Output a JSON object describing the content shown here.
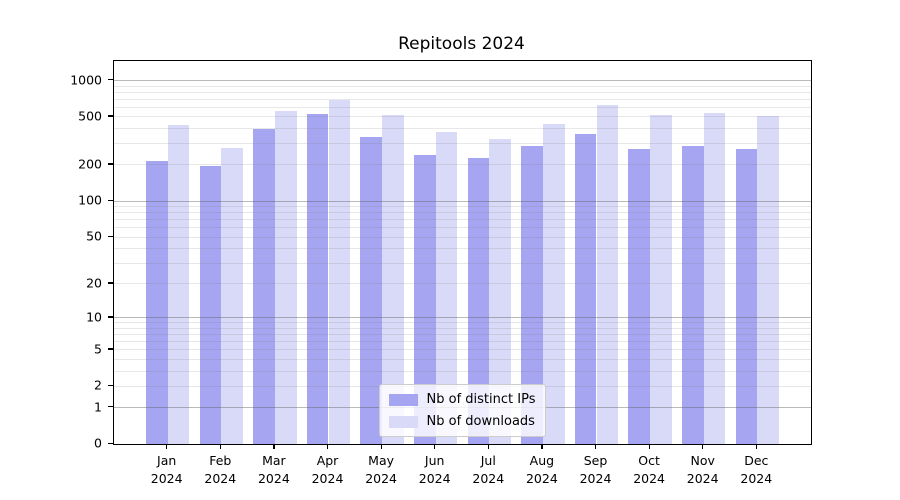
{
  "title": "Repitools 2024",
  "chart_data": {
    "type": "bar",
    "title": "Repitools 2024",
    "categories": [
      "Jan",
      "Feb",
      "Mar",
      "Apr",
      "May",
      "Jun",
      "Jul",
      "Aug",
      "Sep",
      "Oct",
      "Nov",
      "Dec"
    ],
    "category_year": "2024",
    "series": [
      {
        "name": "Nb of distinct IPs",
        "color": "#a5a5f2",
        "values": [
          215,
          195,
          395,
          530,
          340,
          240,
          230,
          290,
          360,
          270,
          285,
          270
        ]
      },
      {
        "name": "Nb of downloads",
        "color": "#d9d9f8",
        "values": [
          430,
          275,
          555,
          685,
          515,
          375,
          330,
          440,
          630,
          520,
          535,
          510
        ]
      }
    ],
    "xlabel": "",
    "ylabel": "",
    "yscale": "log1p",
    "ylim": [
      0,
      1450
    ],
    "y_ticks": [
      0,
      1,
      2,
      5,
      10,
      20,
      50,
      100,
      200,
      500,
      1000
    ],
    "y_major_gridlines": [
      1,
      10,
      100,
      1000
    ],
    "y_minor_gridlines": [
      2,
      3,
      4,
      5,
      6,
      7,
      8,
      9,
      20,
      30,
      40,
      50,
      60,
      70,
      80,
      90,
      200,
      300,
      400,
      500,
      600,
      700,
      800,
      900
    ],
    "grid": true,
    "legend_position": "lower center"
  },
  "legend": {
    "entries": [
      {
        "label": "Nb of distinct IPs"
      },
      {
        "label": "Nb of downloads"
      }
    ]
  }
}
